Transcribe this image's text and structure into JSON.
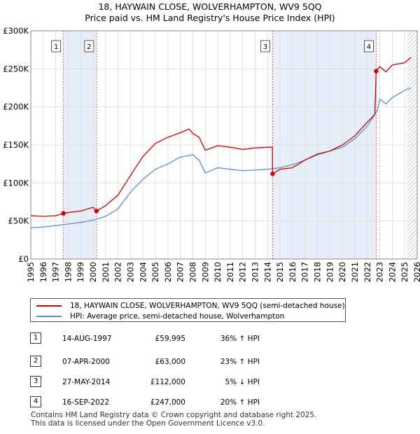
{
  "title": {
    "line1": "18, HAYWAIN CLOSE, WOLVERHAMPTON, WV9 5QQ",
    "line2": "Price paid vs. HM Land Registry's House Price Index (HPI)"
  },
  "colors": {
    "property": "#cc0000",
    "hpi": "#5b8ed0",
    "shade": "#e6eefa",
    "marker_line": "#e06060",
    "grid": "#e0e0e0",
    "hatch": "#999999"
  },
  "legend": {
    "property_label": "18, HAYWAIN CLOSE, WOLVERHAMPTON, WV9 5QQ (semi-detached house)",
    "hpi_label": "HPI: Average price, semi-detached house, Wolverhampton"
  },
  "sales": [
    {
      "num": "1",
      "date": "14-AUG-1997",
      "price": "£59,995",
      "hpi": "36% ↑ HPI"
    },
    {
      "num": "2",
      "date": "07-APR-2000",
      "price": "£63,000",
      "hpi": "23% ↑ HPI"
    },
    {
      "num": "3",
      "date": "27-MAY-2014",
      "price": "£112,000",
      "hpi": "5% ↓ HPI"
    },
    {
      "num": "4",
      "date": "16-SEP-2022",
      "price": "£247,000",
      "hpi": "20% ↑ HPI"
    }
  ],
  "footer": {
    "line1": "Contains HM Land Registry data © Crown copyright and database right 2025.",
    "line2": "This data is licensed under the Open Government Licence v3.0."
  },
  "chart_data": {
    "type": "line",
    "xlim": [
      1995,
      2026
    ],
    "ylim": [
      0,
      300000
    ],
    "y_ticks": [
      {
        "value": 0,
        "label": "£0"
      },
      {
        "value": 50000,
        "label": "£50K"
      },
      {
        "value": 100000,
        "label": "£100K"
      },
      {
        "value": 150000,
        "label": "£150K"
      },
      {
        "value": 200000,
        "label": "£200K"
      },
      {
        "value": 250000,
        "label": "£250K"
      },
      {
        "value": 300000,
        "label": "£300K"
      }
    ],
    "x_ticks": [
      "1995",
      "1996",
      "1997",
      "1998",
      "1999",
      "2000",
      "2001",
      "2002",
      "2003",
      "2004",
      "2005",
      "2006",
      "2007",
      "2008",
      "2009",
      "2010",
      "2011",
      "2012",
      "2013",
      "2014",
      "2015",
      "2016",
      "2017",
      "2018",
      "2019",
      "2020",
      "2021",
      "2022",
      "2023",
      "2024",
      "2025",
      "2026"
    ],
    "shaded_ranges": [
      [
        1997.62,
        2000.27
      ],
      [
        2014.4,
        2022.71
      ]
    ],
    "hatched_from": 2025.2,
    "markers": [
      {
        "label": "1",
        "x": 1997.62,
        "y": 59995
      },
      {
        "label": "2",
        "x": 2000.27,
        "y": 63000
      },
      {
        "label": "3",
        "x": 2014.4,
        "y": 112000
      },
      {
        "label": "4",
        "x": 2022.71,
        "y": 247000
      }
    ],
    "series": [
      {
        "name": "18, HAYWAIN CLOSE, WOLVERHAMPTON, WV9 5QQ (semi-detached house)",
        "x": [
          1995,
          1996,
          1997,
          1997.62,
          1998,
          1999,
          2000,
          2000.27,
          2001,
          2002,
          2003,
          2004,
          2005,
          2006,
          2007,
          2007.7,
          2008,
          2008.5,
          2009,
          2010,
          2011,
          2012,
          2013,
          2014,
          2014.38,
          2014.4,
          2015,
          2016,
          2017,
          2018,
          2019,
          2020,
          2021,
          2022,
          2022.6,
          2022.71,
          2023,
          2023.5,
          2024,
          2025,
          2025.5
        ],
        "y": [
          57000,
          56000,
          57000,
          59995,
          61000,
          63000,
          68000,
          63000,
          70000,
          84000,
          110000,
          135000,
          152000,
          160000,
          166000,
          171000,
          165000,
          160000,
          143000,
          149000,
          147000,
          144000,
          146000,
          147000,
          147000,
          112000,
          118000,
          120000,
          130000,
          138000,
          142000,
          150000,
          162000,
          180000,
          190000,
          247000,
          253000,
          246000,
          255000,
          258000,
          265000
        ]
      },
      {
        "name": "HPI: Average price, semi-detached house, Wolverhampton",
        "x": [
          1995,
          1996,
          1997,
          1998,
          1999,
          2000,
          2001,
          2002,
          2003,
          2004,
          2005,
          2006,
          2007,
          2008,
          2008.5,
          2009,
          2010,
          2011,
          2012,
          2013,
          2014,
          2015,
          2016,
          2017,
          2018,
          2019,
          2020,
          2021,
          2022,
          2022.8,
          2023,
          2023.5,
          2024,
          2025,
          2025.5
        ],
        "y": [
          41000,
          42000,
          44000,
          46000,
          48000,
          51000,
          56000,
          66000,
          88000,
          105000,
          118000,
          125000,
          134000,
          137000,
          130000,
          113000,
          120000,
          118000,
          116000,
          117000,
          118000,
          120000,
          124000,
          130000,
          137000,
          142000,
          147000,
          158000,
          175000,
          195000,
          210000,
          204000,
          212000,
          222000,
          225000
        ]
      }
    ]
  }
}
